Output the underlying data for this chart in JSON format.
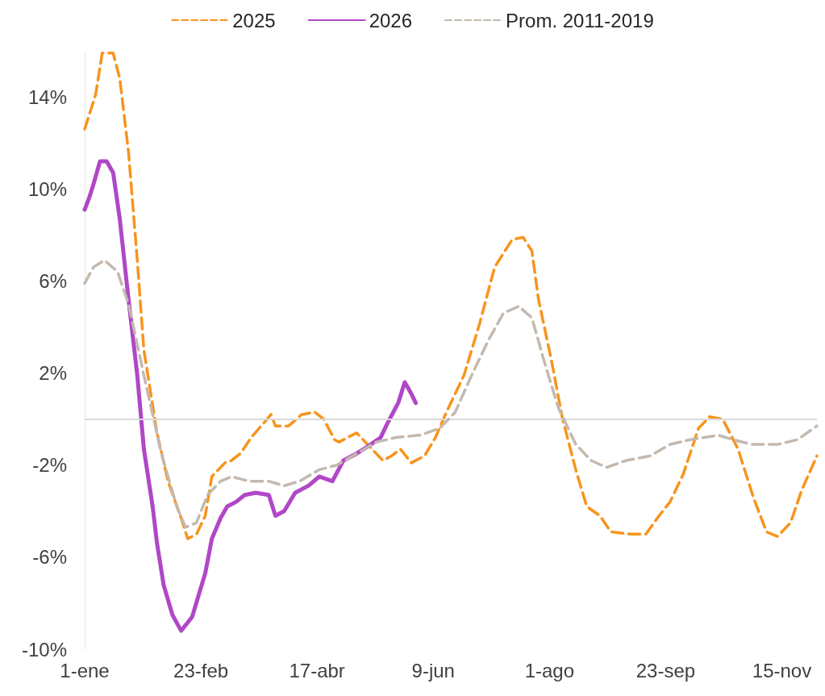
{
  "chart_data": {
    "type": "line",
    "xlim": [
      "--01-01",
      "--12-01"
    ],
    "xticks": [
      {
        "value": "--01-01",
        "label": "1-ene"
      },
      {
        "value": "--02-23",
        "label": "23-feb"
      },
      {
        "value": "--04-17",
        "label": "17-abr"
      },
      {
        "value": "--06-09",
        "label": "9-jun"
      },
      {
        "value": "--08-01",
        "label": "1-ago"
      },
      {
        "value": "--09-23",
        "label": "23-sep"
      },
      {
        "value": "--11-15",
        "label": "15-nov"
      }
    ],
    "ylim": [
      -10,
      16
    ],
    "yticks": [
      {
        "value": -10,
        "label": "-10%"
      },
      {
        "value": -6,
        "label": "-6%"
      },
      {
        "value": -2,
        "label": "-2%"
      },
      {
        "value": 2,
        "label": "2%"
      },
      {
        "value": 6,
        "label": "6%"
      },
      {
        "value": 10,
        "label": "10%"
      },
      {
        "value": 14,
        "label": "14%"
      }
    ],
    "grid": false,
    "legend": "top",
    "marker": "none",
    "ref_lines": [
      {
        "axis": "y",
        "value": 0,
        "label": null,
        "color": "#d9d9d9",
        "line_style": "solid"
      }
    ],
    "series": [
      {
        "name": "2025",
        "color": "#f7941d",
        "line_style": "dashed",
        "x": [
          "--01-01",
          "--01-06",
          "--01-09",
          "--01-14",
          "--01-17",
          "--01-21",
          "--01-25",
          "--01-28",
          "--02-03",
          "--02-08",
          "--02-14",
          "--02-17",
          "--02-21",
          "--02-25",
          "--02-28",
          "--03-06",
          "--03-09",
          "--03-13",
          "--03-18",
          "--03-27",
          "--03-29",
          "--04-04",
          "--04-10",
          "--04-16",
          "--04-20",
          "--04-25",
          "--04-27",
          "--05-05",
          "--05-10",
          "--05-17",
          "--05-21",
          "--05-25",
          "--05-30",
          "--06-05",
          "--06-10",
          "--06-15",
          "--06-23",
          "--06-30",
          "--07-07",
          "--07-15",
          "--07-20",
          "--07-24",
          "--07-27",
          "--08-02",
          "--08-07",
          "--08-13",
          "--08-18",
          "--08-24",
          "--08-29",
          "--09-07",
          "--09-14",
          "--09-20",
          "--09-25",
          "--10-01",
          "--10-08",
          "--10-13",
          "--10-19",
          "--10-26",
          "--11-02",
          "--11-08",
          "--11-13",
          "--11-19",
          "--11-24",
          "--12-01"
        ],
        "values": [
          12.6,
          14.1,
          15.9,
          15.9,
          14.8,
          11.6,
          6.9,
          3.0,
          -0.6,
          -2.7,
          -4.3,
          -5.2,
          -5.0,
          -4.2,
          -2.5,
          -1.9,
          -1.8,
          -1.5,
          -0.8,
          0.2,
          -0.3,
          -0.3,
          0.2,
          0.3,
          0.0,
          -0.9,
          -1.0,
          -0.6,
          -1.1,
          -1.8,
          -1.6,
          -1.3,
          -1.9,
          -1.6,
          -0.8,
          0.3,
          1.9,
          4.1,
          6.6,
          7.8,
          7.9,
          7.3,
          5.2,
          2.5,
          0.0,
          -2.2,
          -3.8,
          -4.2,
          -4.9,
          -5.0,
          -5.0,
          -4.2,
          -3.6,
          -2.4,
          -0.4,
          0.1,
          0.0,
          -1.3,
          -3.4,
          -4.9,
          -5.1,
          -4.5,
          -3.1,
          -1.6
        ]
      },
      {
        "name": "2026",
        "color": "#b047c7",
        "line_style": "solid",
        "x": [
          "--01-01",
          "--01-03",
          "--01-05",
          "--01-08",
          "--01-11",
          "--01-14",
          "--01-17",
          "--01-21",
          "--01-25",
          "--01-28",
          "--02-01",
          "--02-03",
          "--02-06",
          "--02-10",
          "--02-14",
          "--02-19",
          "--02-25",
          "--02-28",
          "--03-04",
          "--03-07",
          "--03-11",
          "--03-15",
          "--03-20",
          "--03-26",
          "--03-29",
          "--04-02",
          "--04-07",
          "--04-13",
          "--04-18",
          "--04-24",
          "--04-29",
          "--05-05",
          "--05-10",
          "--05-16",
          "--05-19",
          "--05-24",
          "--05-27",
          "--05-30",
          "--06-01"
        ],
        "values": [
          9.1,
          9.6,
          10.2,
          11.2,
          11.2,
          10.7,
          8.7,
          5.2,
          1.9,
          -1.3,
          -3.8,
          -5.4,
          -7.2,
          -8.5,
          -9.2,
          -8.6,
          -6.7,
          -5.2,
          -4.3,
          -3.8,
          -3.6,
          -3.3,
          -3.2,
          -3.3,
          -4.2,
          -4.0,
          -3.2,
          -2.9,
          -2.5,
          -2.7,
          -1.8,
          -1.5,
          -1.2,
          -0.8,
          -0.2,
          0.7,
          1.6,
          1.1,
          0.7
        ]
      },
      {
        "name": "Prom. 2011-2019",
        "color": "#c4b9af",
        "line_style": "dashed",
        "x": [
          "--01-01",
          "--01-05",
          "--01-10",
          "--01-16",
          "--01-21",
          "--01-28",
          "--02-05",
          "--02-12",
          "--02-16",
          "--02-21",
          "--02-26",
          "--03-04",
          "--03-09",
          "--03-17",
          "--03-26",
          "--04-02",
          "--04-09",
          "--04-18",
          "--04-26",
          "--05-05",
          "--05-14",
          "--05-23",
          "--06-03",
          "--06-12",
          "--06-19",
          "--06-26",
          "--07-04",
          "--07-11",
          "--07-18",
          "--07-24",
          "--07-29",
          "--08-05",
          "--08-13",
          "--08-20",
          "--08-27",
          "--09-05",
          "--09-16",
          "--09-25",
          "--10-04",
          "--10-17",
          "--10-24",
          "--11-01",
          "--11-13",
          "--11-22",
          "--12-01"
        ],
        "values": [
          5.9,
          6.6,
          6.9,
          6.4,
          5.0,
          1.9,
          -1.5,
          -3.8,
          -4.7,
          -4.5,
          -3.3,
          -2.7,
          -2.5,
          -2.7,
          -2.7,
          -2.9,
          -2.7,
          -2.2,
          -2.0,
          -1.5,
          -1.0,
          -0.8,
          -0.7,
          -0.4,
          0.3,
          1.8,
          3.4,
          4.6,
          4.9,
          4.4,
          2.7,
          0.5,
          -1.1,
          -1.8,
          -2.1,
          -1.8,
          -1.6,
          -1.1,
          -0.9,
          -0.7,
          -0.9,
          -1.1,
          -1.1,
          -0.9,
          -0.3
        ]
      }
    ]
  }
}
